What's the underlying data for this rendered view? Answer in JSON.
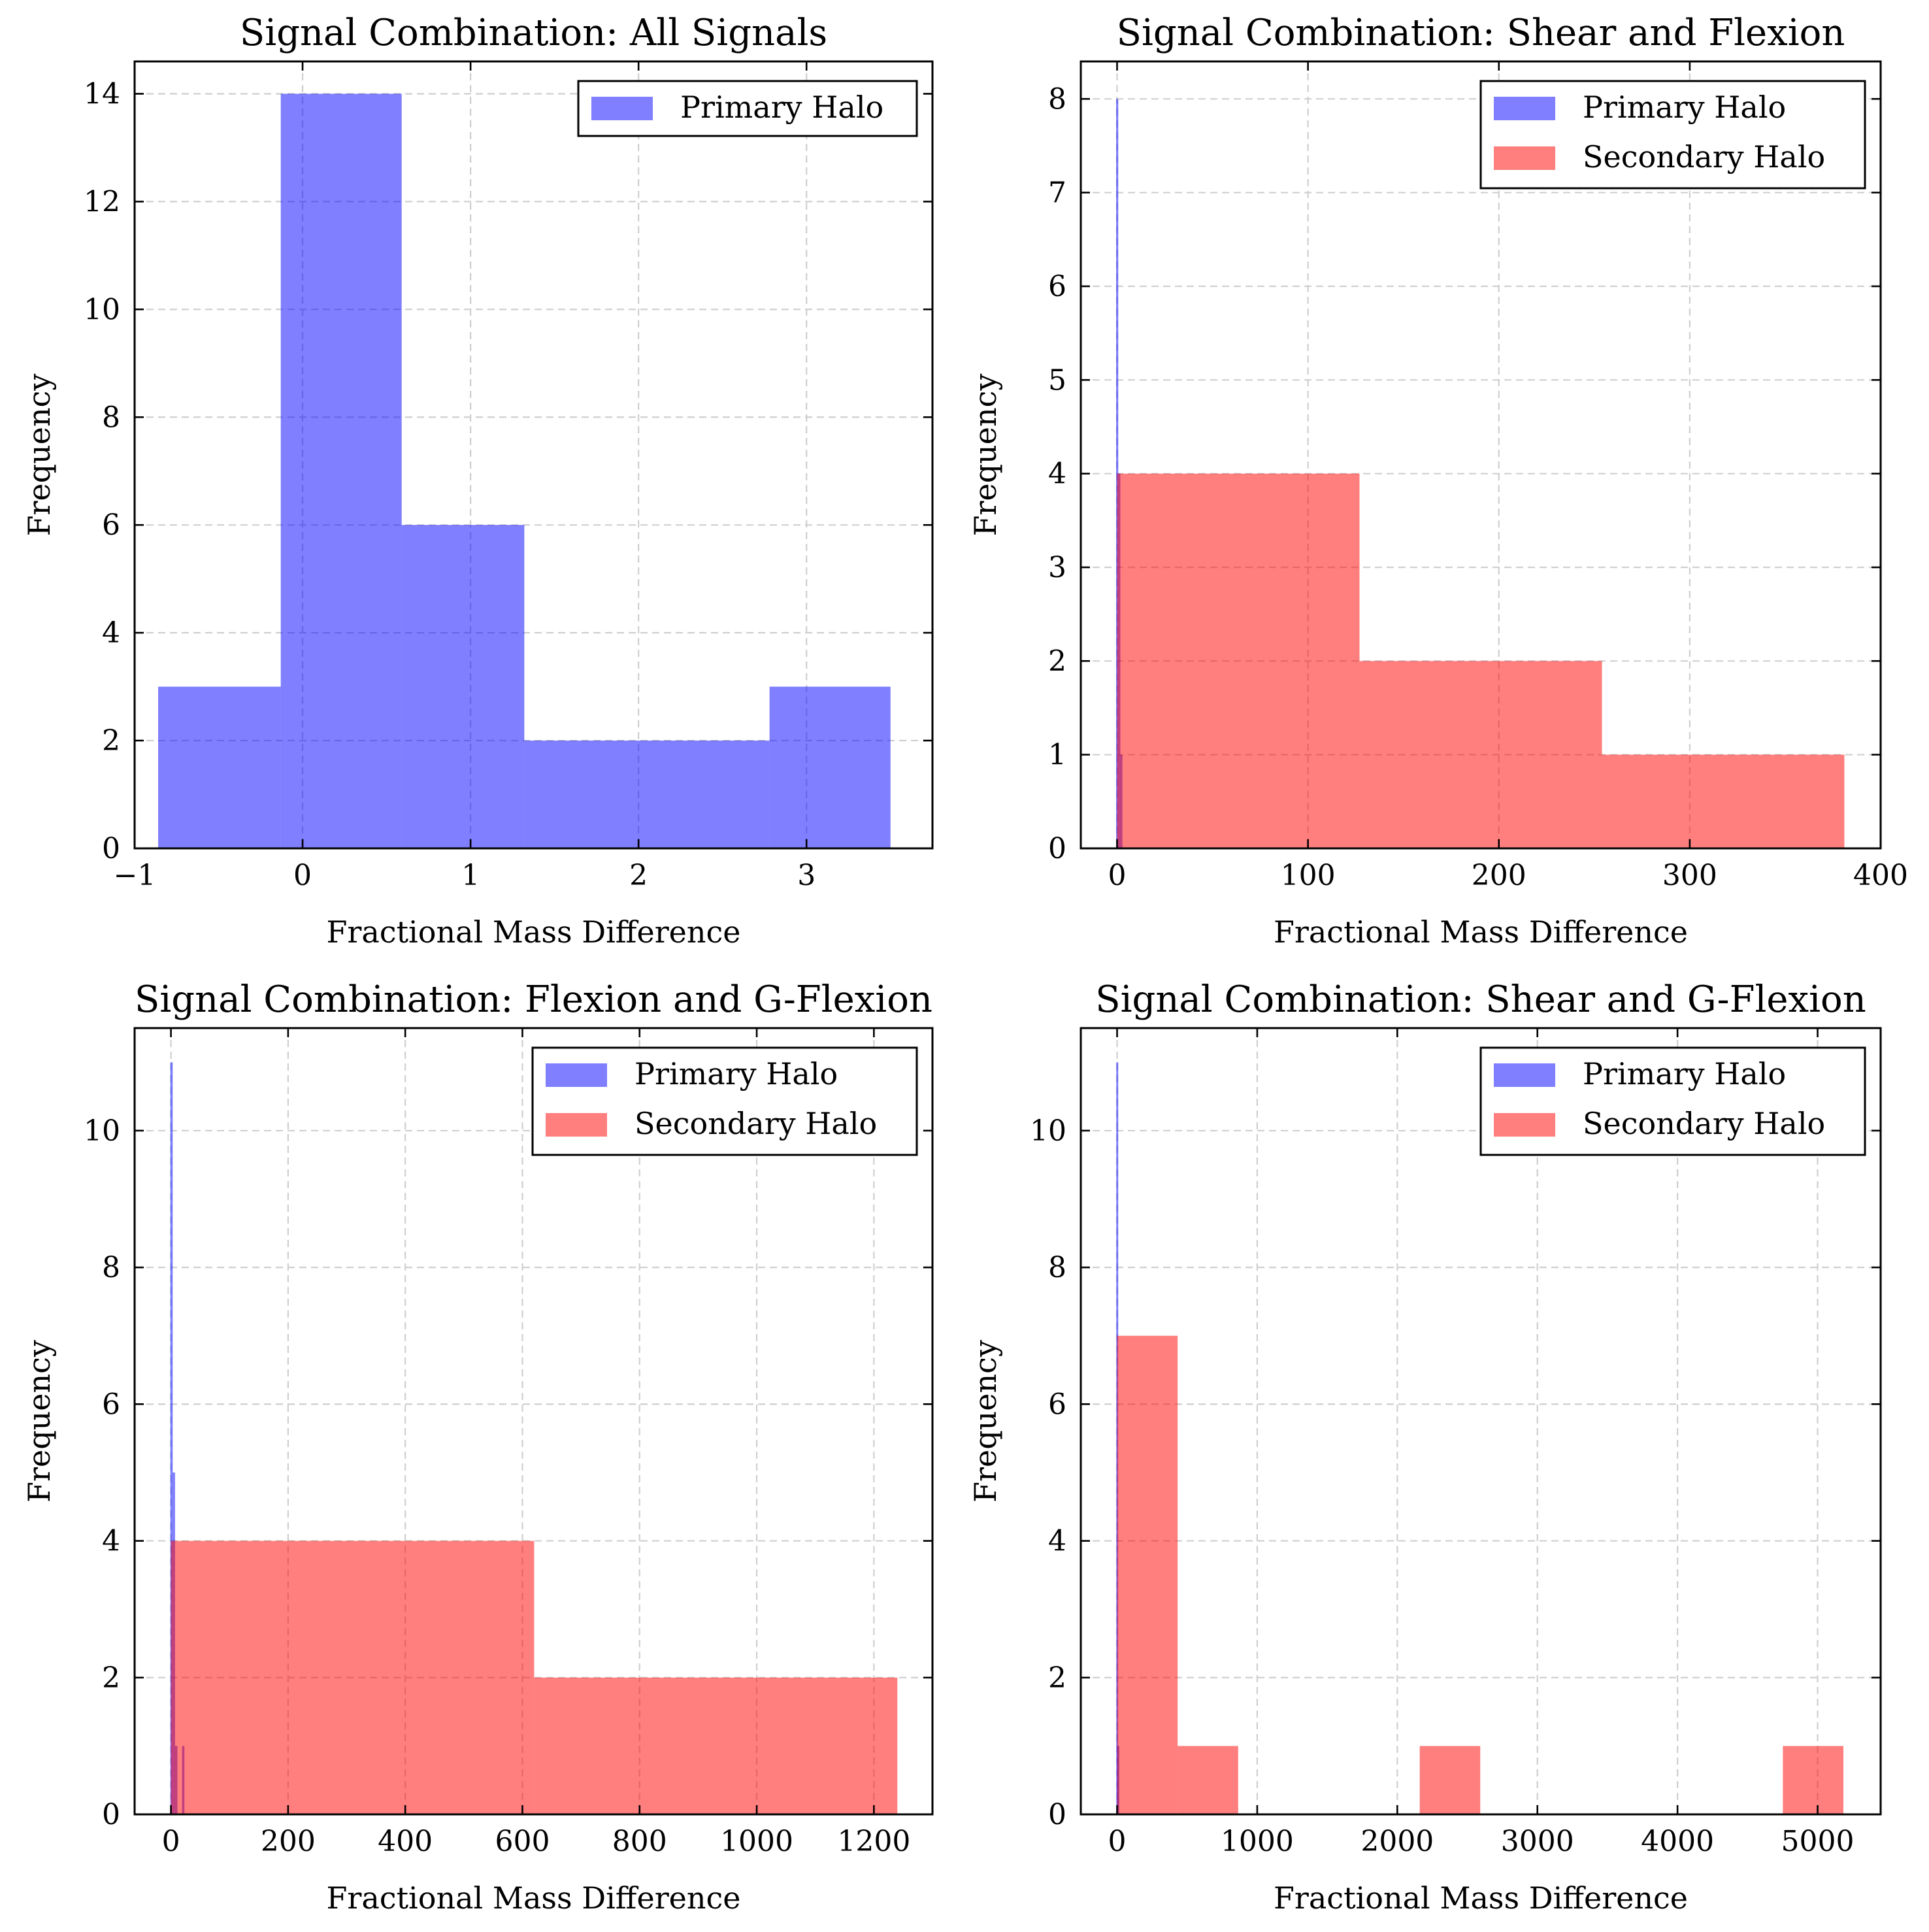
{
  "chart_data": [
    {
      "type": "bar",
      "title": "Signal Combination: All Signals",
      "xlabel": "Fractional Mass Difference",
      "ylabel": "Frequency",
      "xlim": [
        -1.0,
        3.75
      ],
      "ylim": [
        0,
        14.6
      ],
      "xticks": [
        -1,
        0,
        1,
        2,
        3
      ],
      "xtick_labels": [
        "−1",
        "0",
        "1",
        "2",
        "3"
      ],
      "yticks": [
        0,
        2,
        4,
        6,
        8,
        10,
        12,
        14
      ],
      "ytick_labels": [
        "0",
        "2",
        "4",
        "6",
        "8",
        "10",
        "12",
        "14"
      ],
      "grid": true,
      "legend_position": "top-right",
      "series": [
        {
          "name": "Primary Halo",
          "color": "#0000ff",
          "bins": [
            {
              "x0": -0.86,
              "x1": -0.13,
              "count": 3
            },
            {
              "x0": -0.13,
              "x1": 0.59,
              "count": 14
            },
            {
              "x0": 0.59,
              "x1": 1.32,
              "count": 6
            },
            {
              "x0": 1.32,
              "x1": 2.05,
              "count": 2
            },
            {
              "x0": 2.05,
              "x1": 2.78,
              "count": 2
            },
            {
              "x0": 2.78,
              "x1": 3.5,
              "count": 3
            }
          ]
        }
      ]
    },
    {
      "type": "bar",
      "title": "Signal Combination: Shear and Flexion",
      "xlabel": "Fractional Mass Difference",
      "ylabel": "Frequency",
      "xlim": [
        -19,
        400
      ],
      "ylim": [
        0,
        8.4
      ],
      "xticks": [
        0,
        100,
        200,
        300,
        400
      ],
      "xtick_labels": [
        "0",
        "100",
        "200",
        "300",
        "400"
      ],
      "yticks": [
        0,
        1,
        2,
        3,
        4,
        5,
        6,
        7,
        8
      ],
      "ytick_labels": [
        "0",
        "1",
        "2",
        "3",
        "4",
        "5",
        "6",
        "7",
        "8"
      ],
      "grid": true,
      "legend_position": "top-right",
      "series": [
        {
          "name": "Primary Halo",
          "color": "#0000ff",
          "bins": [
            {
              "x0": -0.5,
              "x1": 0.6,
              "count": 8
            },
            {
              "x0": 0.6,
              "x1": 1.7,
              "count": 4
            },
            {
              "x0": 1.7,
              "x1": 2.8,
              "count": 1
            }
          ]
        },
        {
          "name": "Secondary Halo",
          "color": "#ff0000",
          "bins": [
            {
              "x0": 0.0,
              "x1": 127,
              "count": 4
            },
            {
              "x0": 127,
              "x1": 254,
              "count": 2
            },
            {
              "x0": 254,
              "x1": 381,
              "count": 1
            }
          ]
        }
      ]
    },
    {
      "type": "bar",
      "title": "Signal Combination: Flexion and G-Flexion",
      "xlabel": "Fractional Mass Difference",
      "ylabel": "Frequency",
      "xlim": [
        -62,
        1300
      ],
      "ylim": [
        0,
        11.5
      ],
      "xticks": [
        0,
        200,
        400,
        600,
        800,
        1000,
        1200
      ],
      "xtick_labels": [
        "0",
        "200",
        "400",
        "600",
        "800",
        "1000",
        "1200"
      ],
      "yticks": [
        0,
        2,
        4,
        6,
        8,
        10
      ],
      "ytick_labels": [
        "0",
        "2",
        "4",
        "6",
        "8",
        "10"
      ],
      "grid": true,
      "legend_position": "top-right",
      "series": [
        {
          "name": "Primary Halo",
          "color": "#0000ff",
          "bins": [
            {
              "x0": -1,
              "x1": 3,
              "count": 11
            },
            {
              "x0": 3,
              "x1": 7,
              "count": 5
            },
            {
              "x0": 7,
              "x1": 11,
              "count": 1
            },
            {
              "x0": 19,
              "x1": 23,
              "count": 1
            }
          ]
        },
        {
          "name": "Secondary Halo",
          "color": "#ff0000",
          "bins": [
            {
              "x0": 0,
              "x1": 620,
              "count": 4
            },
            {
              "x0": 620,
              "x1": 1240,
              "count": 2
            }
          ]
        }
      ]
    },
    {
      "type": "bar",
      "title": "Signal Combination: Shear and G-Flexion",
      "xlabel": "Fractional Mass Difference",
      "ylabel": "Frequency",
      "xlim": [
        -259,
        5450
      ],
      "ylim": [
        0,
        11.5
      ],
      "xticks": [
        0,
        1000,
        2000,
        3000,
        4000,
        5000
      ],
      "xtick_labels": [
        "0",
        "1000",
        "2000",
        "3000",
        "4000",
        "5000"
      ],
      "yticks": [
        0,
        2,
        4,
        6,
        8,
        10
      ],
      "ytick_labels": [
        "0",
        "2",
        "4",
        "6",
        "8",
        "10"
      ],
      "grid": true,
      "legend_position": "top-right",
      "series": [
        {
          "name": "Primary Halo",
          "color": "#0000ff",
          "bins": [
            {
              "x0": -3,
              "x1": 5,
              "count": 11
            },
            {
              "x0": 5,
              "x1": 13,
              "count": 1
            }
          ]
        },
        {
          "name": "Secondary Halo",
          "color": "#ff0000",
          "bins": [
            {
              "x0": 0,
              "x1": 432,
              "count": 7
            },
            {
              "x0": 432,
              "x1": 864,
              "count": 1
            },
            {
              "x0": 2160,
              "x1": 2592,
              "count": 1
            },
            {
              "x0": 4752,
              "x1": 5184,
              "count": 1
            }
          ]
        }
      ]
    }
  ]
}
